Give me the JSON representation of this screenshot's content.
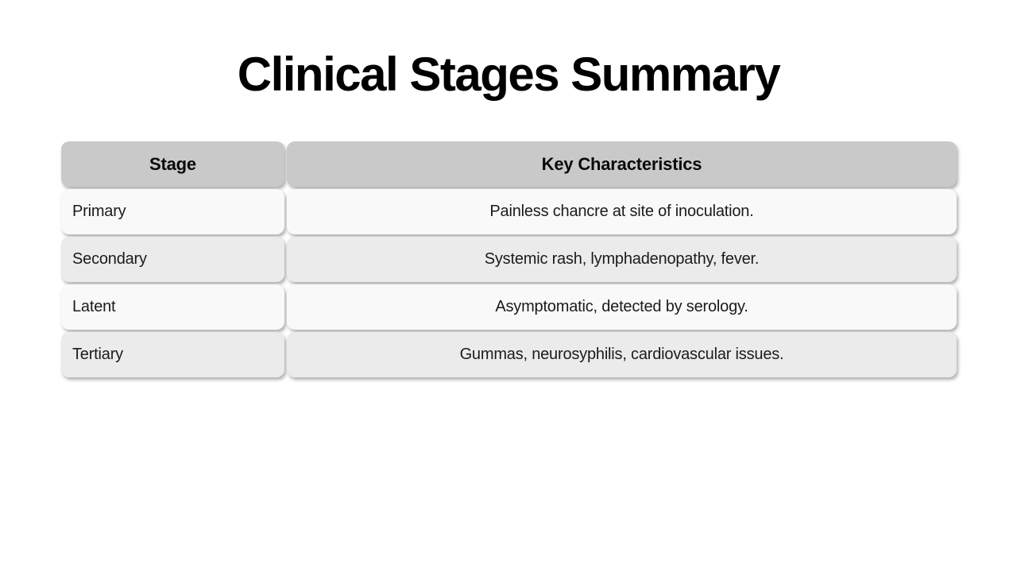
{
  "page": {
    "title": "Clinical Stages Summary"
  },
  "table": {
    "columns": [
      {
        "label": "Stage"
      },
      {
        "label": "Key Characteristics"
      }
    ],
    "rows": [
      {
        "stage": "Primary",
        "characteristics": "Painless chancre at site of inoculation."
      },
      {
        "stage": "Secondary",
        "characteristics": "Systemic rash, lymphadenopathy, fever."
      },
      {
        "stage": "Latent",
        "characteristics": "Asymptomatic, detected by serology."
      },
      {
        "stage": "Tertiary",
        "characteristics": "Gummas, neurosyphilis, cardiovascular issues."
      }
    ],
    "colors": {
      "header_bg": "#c9c9c9",
      "row_odd_bg": "#f9f9f9",
      "row_even_bg": "#ebebeb",
      "text": "#1b1b1b",
      "title": "#000000",
      "background": "#ffffff"
    }
  }
}
